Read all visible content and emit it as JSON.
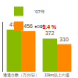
{
  "chart_data": {
    "type": "bar",
    "categories": [
      "通過台数（万台/日）",
      "10km以上の道"
    ],
    "series": [
      {
        "name": "'07年",
        "color": "#88bb00",
        "values": [
          472,
          372
        ]
      },
      {
        "name": "●08年",
        "color": "#ff8800",
        "values": [
          456,
          310
        ]
      }
    ],
    "ylim": [
      0,
      560
    ],
    "data_labels": true,
    "tick_labels": "x",
    "legend": "upper left",
    "grid": false,
    "annotations": [
      {
        "text": "-1.4 %",
        "color": "#cc0000"
      }
    ]
  }
}
